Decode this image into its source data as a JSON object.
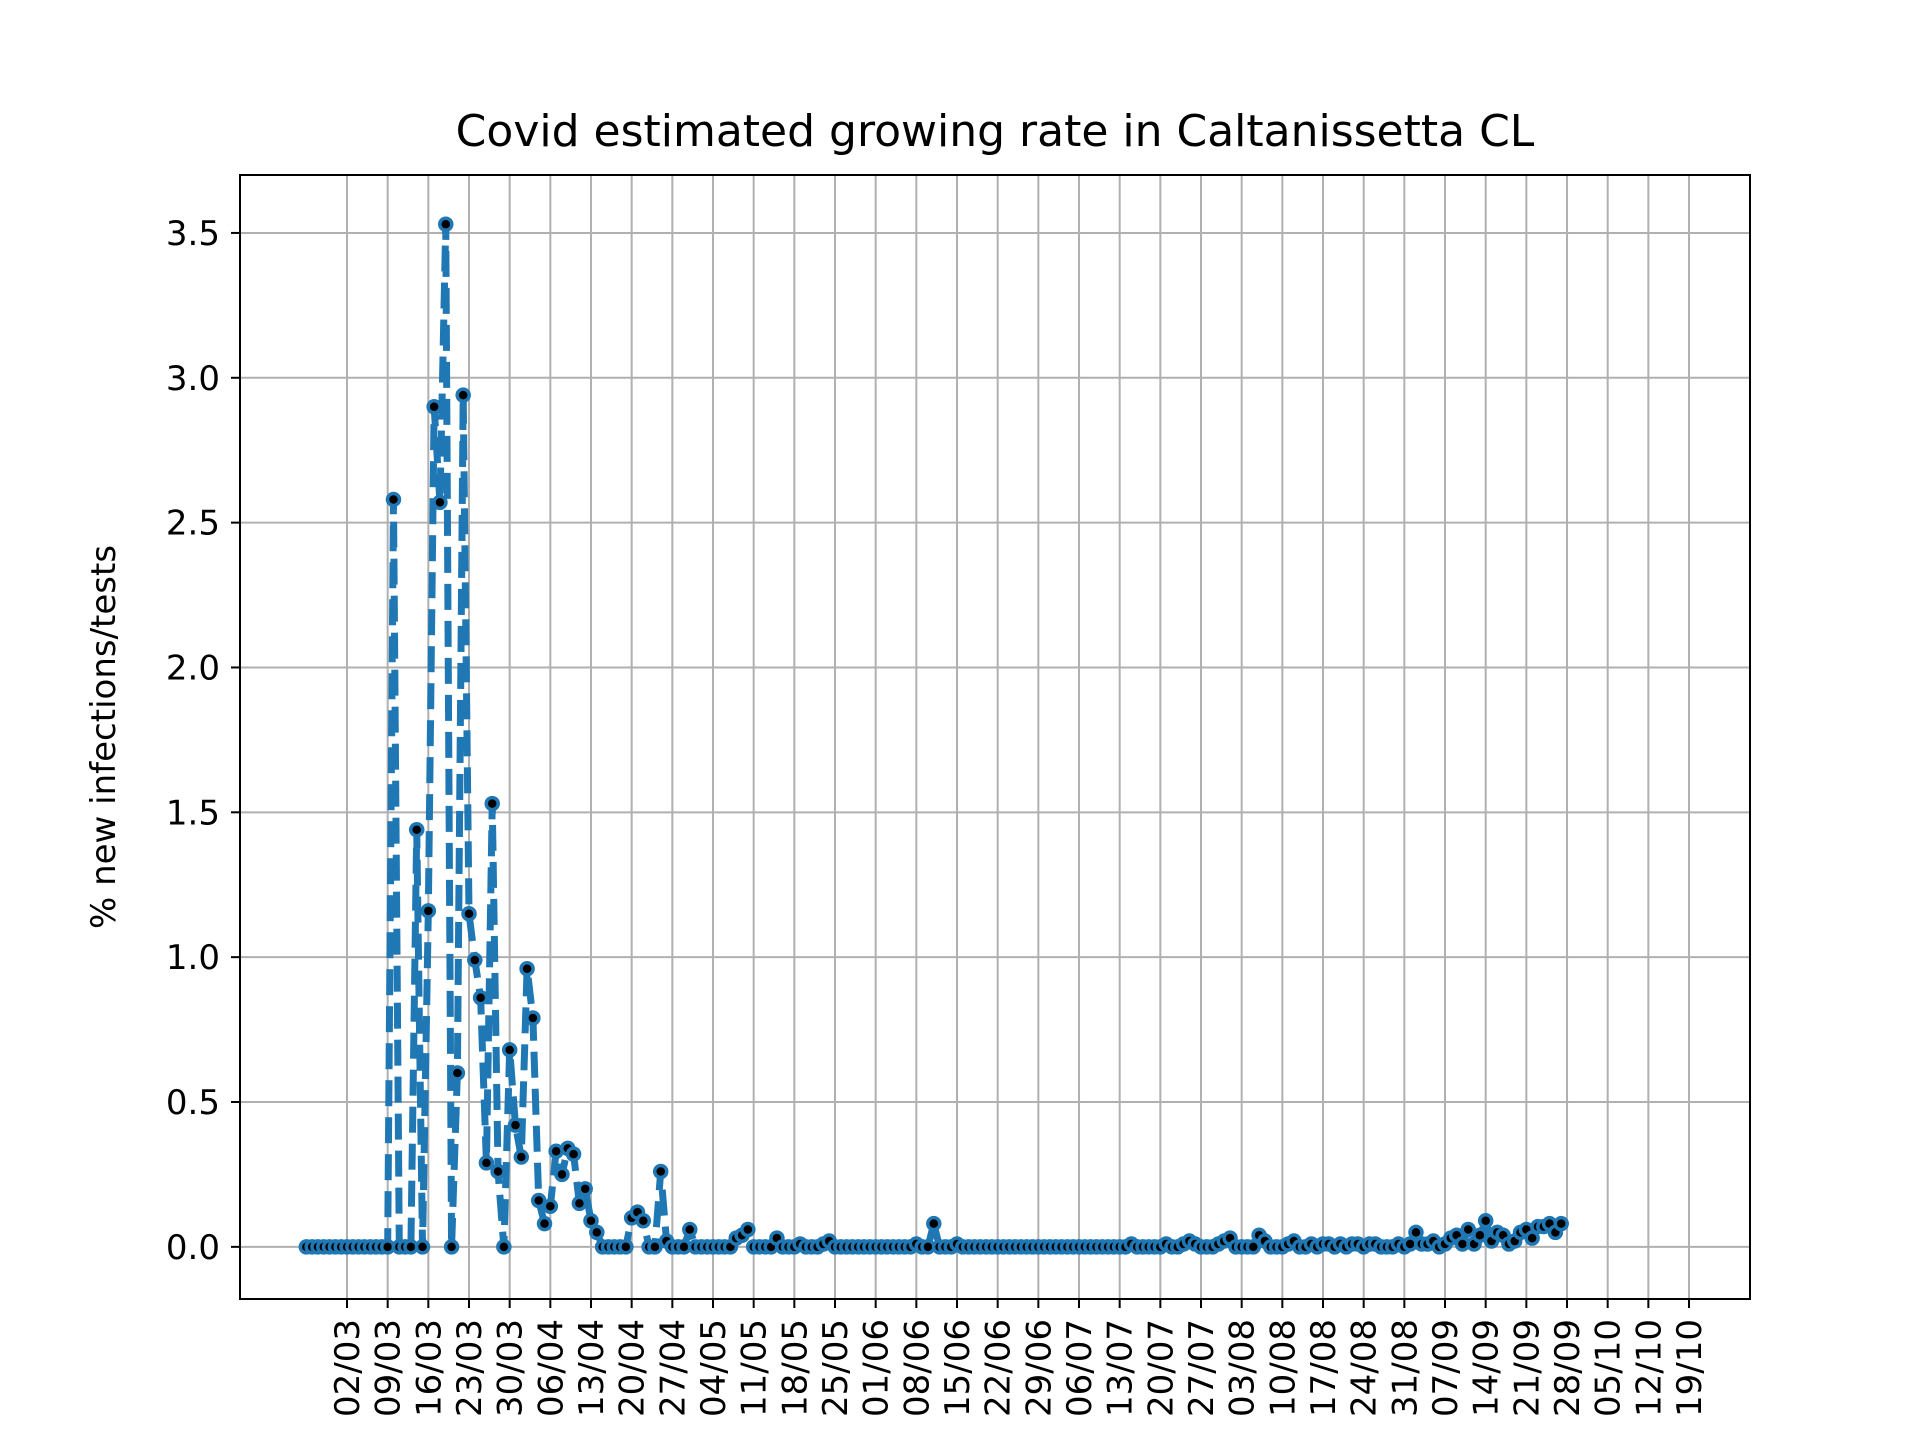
{
  "chart_data": {
    "type": "line",
    "title": "Covid estimated growing rate in Caltanissetta CL",
    "xlabel": "",
    "ylabel": "% new infections/tests",
    "x_start_date": "2020-02-24",
    "x_ticks": [
      "02/03",
      "09/03",
      "16/03",
      "23/03",
      "30/03",
      "06/04",
      "13/04",
      "20/04",
      "27/04",
      "04/05",
      "11/05",
      "18/05",
      "25/05",
      "01/06",
      "08/06",
      "15/06",
      "22/06",
      "29/06",
      "06/07",
      "13/07",
      "20/07",
      "27/07",
      "03/08",
      "10/08",
      "17/08",
      "24/08",
      "31/08",
      "07/09",
      "14/09",
      "21/09",
      "28/09",
      "05/10",
      "12/10",
      "19/10"
    ],
    "y_ticks": [
      "0.0",
      "0.5",
      "1.0",
      "1.5",
      "2.0",
      "2.5",
      "3.0",
      "3.5"
    ],
    "ylim": [
      -0.18,
      3.7
    ],
    "grid": true,
    "series": [
      {
        "name": "",
        "color": "#1f77b4",
        "marker_color": "#000000",
        "values": [
          0,
          0,
          0,
          0,
          0,
          0,
          0,
          0,
          0,
          0,
          0,
          0,
          0,
          0,
          0,
          2.58,
          0,
          0,
          0,
          1.44,
          0,
          1.16,
          2.9,
          2.57,
          3.53,
          0,
          0.6,
          2.94,
          1.15,
          0.99,
          0.86,
          0.29,
          1.53,
          0.26,
          0,
          0.68,
          0.42,
          0.31,
          0.96,
          0.79,
          0.16,
          0.08,
          0.14,
          0.33,
          0.25,
          0.34,
          0.32,
          0.15,
          0.2,
          0.09,
          0.05,
          0,
          0,
          0,
          0,
          0,
          0.1,
          0.12,
          0.09,
          0,
          0,
          0.26,
          0.02,
          0,
          0,
          0,
          0.06,
          0,
          0,
          0,
          0,
          0,
          0,
          0,
          0.03,
          0.04,
          0.06,
          0,
          0,
          0,
          0,
          0.03,
          0,
          0,
          0,
          0.01,
          0,
          0,
          0,
          0.01,
          0.02,
          0,
          0,
          0,
          0,
          0,
          0,
          0,
          0,
          0,
          0,
          0,
          0,
          0,
          0,
          0.01,
          0,
          0,
          0.08,
          0,
          0,
          0,
          0.01,
          0,
          0,
          0,
          0,
          0,
          0,
          0,
          0,
          0,
          0,
          0,
          0,
          0,
          0,
          0,
          0,
          0,
          0,
          0,
          0,
          0,
          0,
          0,
          0,
          0,
          0,
          0,
          0,
          0,
          0.01,
          0,
          0,
          0,
          0,
          0,
          0.01,
          0,
          0,
          0.01,
          0.02,
          0.01,
          0,
          0,
          0,
          0.01,
          0.02,
          0.03,
          0,
          0,
          0,
          0,
          0.04,
          0.02,
          0,
          0,
          0,
          0.01,
          0.02,
          0,
          0,
          0.01,
          0,
          0.01,
          0.01,
          0,
          0.01,
          0,
          0.01,
          0.01,
          0,
          0.01,
          0.01,
          0,
          0,
          0,
          0.01,
          0,
          0.01,
          0.05,
          0.01,
          0.01,
          0.02,
          0,
          0.01,
          0.03,
          0.04,
          0.01,
          0.06,
          0.01,
          0.04,
          0.09,
          0.02,
          0.05,
          0.04,
          0.01,
          0.02,
          0.05,
          0.06,
          0.03,
          0.07,
          0.07,
          0.08,
          0.05,
          0.08
        ]
      }
    ]
  }
}
